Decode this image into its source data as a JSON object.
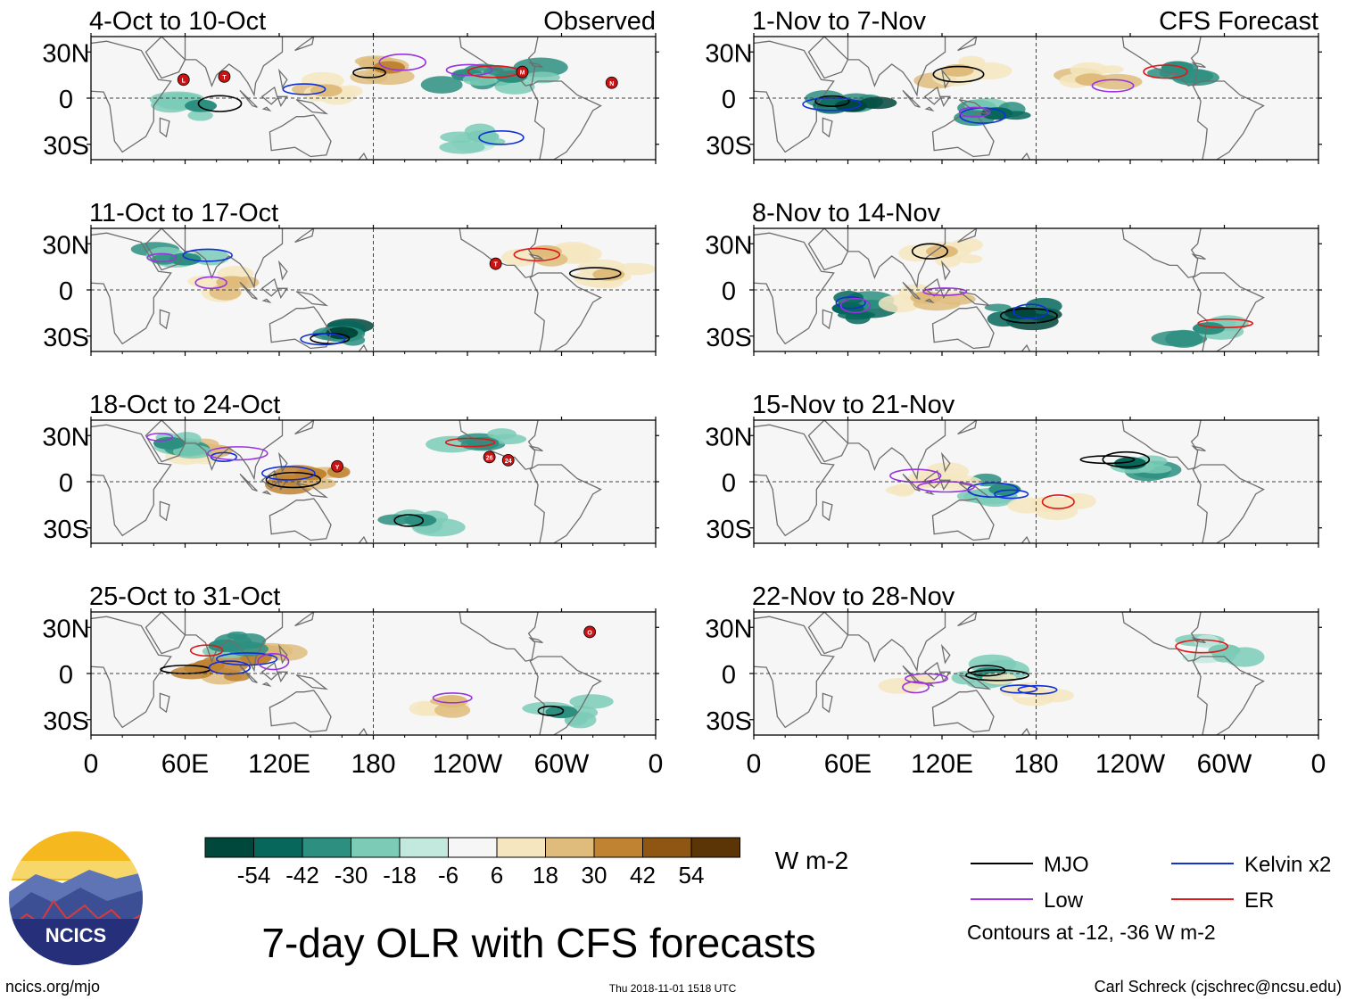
{
  "figure": {
    "title": "7-day OLR with CFS forecasts",
    "site": "ncics.org/mjo",
    "timestamp": "Thu 2018-11-01 1518 UTC",
    "credit": "Carl Schreck (cjschrec@ncsu.edu)",
    "logo_text": "NCICS"
  },
  "columns": {
    "left_label": "Observed",
    "right_label": "CFS Forecast"
  },
  "axes": {
    "y_ticks": [
      "30N",
      "0",
      "30S"
    ],
    "x_ticks": [
      "0",
      "60E",
      "120E",
      "180",
      "120W",
      "60W",
      "0"
    ]
  },
  "colorbar": {
    "unit": "W m-2",
    "tick_labels": [
      "-54",
      "-42",
      "-30",
      "-18",
      "-6",
      "6",
      "18",
      "30",
      "42",
      "54"
    ],
    "colors": [
      "#00473c",
      "#06675a",
      "#2d8f80",
      "#7bcbb7",
      "#c3e8de",
      "#f6f6f6",
      "#f5e6c0",
      "#dfbc7c",
      "#bf8331",
      "#8e5513",
      "#5c3507"
    ]
  },
  "legend": {
    "items": [
      {
        "label": "MJO",
        "color": "#000000"
      },
      {
        "label": "Kelvin x2",
        "color": "#1030d8"
      },
      {
        "label": "Low",
        "color": "#9a32e0"
      },
      {
        "label": "ER",
        "color": "#e01818"
      }
    ],
    "note": "Contours at -12, -36 W m-2"
  },
  "chart_data": {
    "type": "heatmap",
    "title": "7-day OLR with CFS forecasts",
    "variable": "OLR anomaly (W m-2)",
    "xlim": [
      0,
      360
    ],
    "ylim": [
      -40,
      40
    ],
    "panels": [
      {
        "period": "4-Oct to 10-Oct",
        "source": "Observed",
        "storms": [
          {
            "id": "L",
            "lon": 59,
            "lat": 12
          },
          {
            "id": "T",
            "lon": 85,
            "lat": 14
          },
          {
            "id": "M",
            "lon": 275,
            "lat": 17
          },
          {
            "id": "N",
            "lon": 332,
            "lat": 10
          }
        ],
        "anomalies": [
          {
            "lon": 190,
            "lat": 20,
            "v": 45
          },
          {
            "lon": 150,
            "lat": 5,
            "v": 30
          },
          {
            "lon": 240,
            "lat": 15,
            "v": -35
          },
          {
            "lon": 268,
            "lat": 14,
            "v": -30
          },
          {
            "lon": 70,
            "lat": -5,
            "v": -25
          },
          {
            "lon": 250,
            "lat": -25,
            "v": -20
          }
        ]
      },
      {
        "period": "11-Oct to 17-Oct",
        "source": "Observed",
        "storms": [
          {
            "id": "T",
            "lon": 258,
            "lat": 17
          }
        ],
        "anomalies": [
          {
            "lon": 160,
            "lat": -28,
            "v": -50
          },
          {
            "lon": 60,
            "lat": 20,
            "v": -35
          },
          {
            "lon": 90,
            "lat": 5,
            "v": 30
          },
          {
            "lon": 290,
            "lat": 25,
            "v": 30
          },
          {
            "lon": 330,
            "lat": 10,
            "v": 25
          }
        ]
      },
      {
        "period": "18-Oct to 24-Oct",
        "source": "Observed",
        "storms": [
          {
            "id": "Y",
            "lon": 157,
            "lat": 10
          },
          {
            "id": "26",
            "lon": 254,
            "lat": 16
          },
          {
            "id": "24",
            "lon": 266,
            "lat": 14
          }
        ],
        "anomalies": [
          {
            "lon": 140,
            "lat": 5,
            "v": 45
          },
          {
            "lon": 80,
            "lat": 20,
            "v": 30
          },
          {
            "lon": 50,
            "lat": 25,
            "v": -35
          },
          {
            "lon": 250,
            "lat": 25,
            "v": -30
          },
          {
            "lon": 210,
            "lat": -25,
            "v": -25
          }
        ]
      },
      {
        "period": "25-Oct to 31-Oct",
        "source": "Observed",
        "storms": [
          {
            "id": "O",
            "lon": 318,
            "lat": 27
          }
        ],
        "anomalies": [
          {
            "lon": 75,
            "lat": 5,
            "v": 45
          },
          {
            "lon": 105,
            "lat": 10,
            "v": 40
          },
          {
            "lon": 230,
            "lat": -18,
            "v": 35
          },
          {
            "lon": 85,
            "lat": 18,
            "v": -30
          },
          {
            "lon": 300,
            "lat": -25,
            "v": -25
          }
        ]
      },
      {
        "period": "1-Nov to 7-Nov",
        "source": "CFS Forecast",
        "storms": [],
        "anomalies": [
          {
            "lon": 62,
            "lat": -5,
            "v": -50
          },
          {
            "lon": 155,
            "lat": -10,
            "v": -40
          },
          {
            "lon": 215,
            "lat": 12,
            "v": 30
          },
          {
            "lon": 270,
            "lat": 20,
            "v": -35
          },
          {
            "lon": 130,
            "lat": 18,
            "v": 25
          }
        ]
      },
      {
        "period": "8-Nov to 14-Nov",
        "source": "CFS Forecast",
        "storms": [],
        "anomalies": [
          {
            "lon": 170,
            "lat": -15,
            "v": -55
          },
          {
            "lon": 60,
            "lat": -12,
            "v": -45
          },
          {
            "lon": 110,
            "lat": -5,
            "v": 30
          },
          {
            "lon": 290,
            "lat": -25,
            "v": -30
          },
          {
            "lon": 120,
            "lat": 25,
            "v": 25
          }
        ]
      },
      {
        "period": "15-Nov to 21-Nov",
        "source": "CFS Forecast",
        "storms": [],
        "anomalies": [
          {
            "lon": 240,
            "lat": 12,
            "v": -40
          },
          {
            "lon": 160,
            "lat": -5,
            "v": -30
          },
          {
            "lon": 110,
            "lat": 0,
            "v": 20
          },
          {
            "lon": 190,
            "lat": -15,
            "v": 20
          }
        ]
      },
      {
        "period": "22-Nov to 28-Nov",
        "source": "CFS Forecast",
        "storms": [],
        "anomalies": [
          {
            "lon": 150,
            "lat": 0,
            "v": -25
          },
          {
            "lon": 175,
            "lat": -10,
            "v": 20
          },
          {
            "lon": 105,
            "lat": -5,
            "v": 15
          },
          {
            "lon": 300,
            "lat": 15,
            "v": -15
          }
        ]
      }
    ]
  }
}
